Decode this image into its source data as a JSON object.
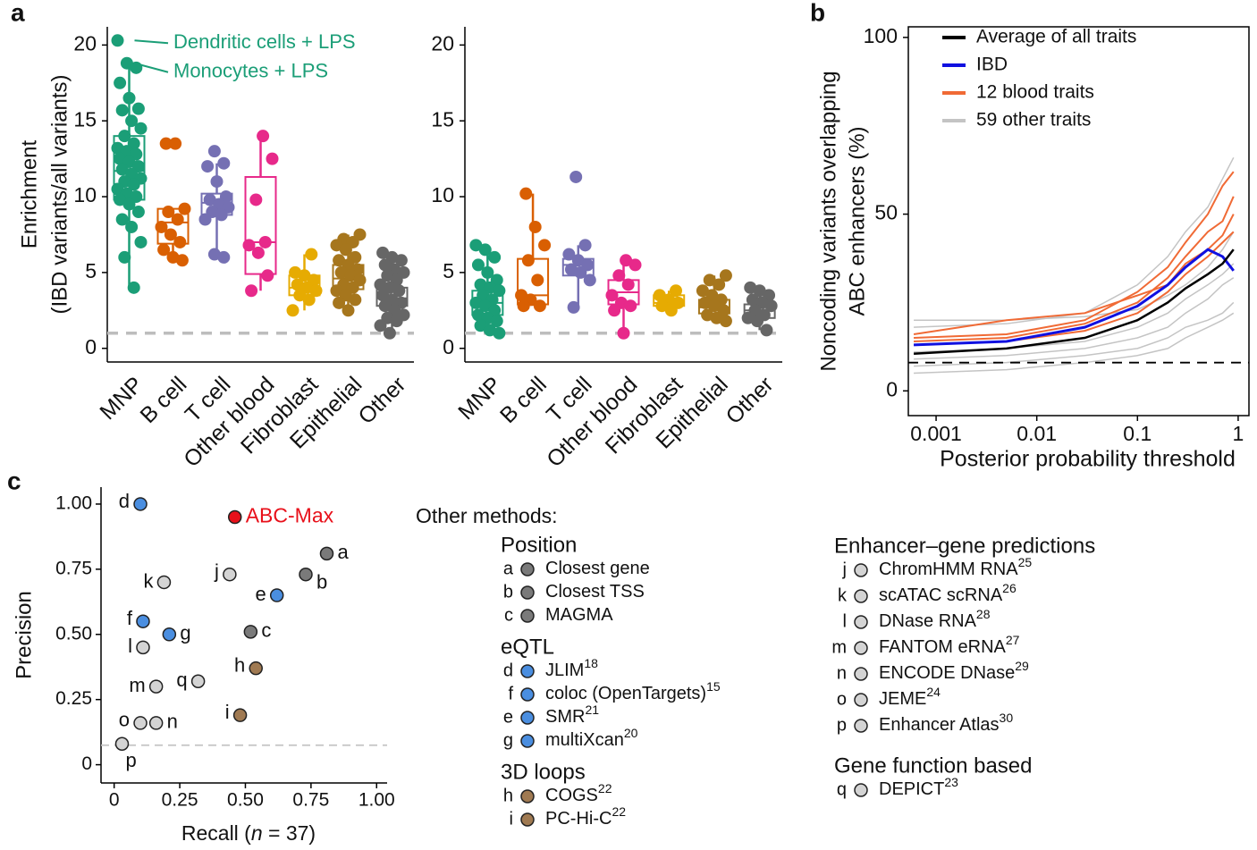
{
  "chart_data": [
    {
      "type": "box",
      "panel": "a",
      "y_label": [
        "Enrichment",
        "(IBD variants/all variants)"
      ],
      "categories": [
        "MNP",
        "B cell",
        "T cell",
        "Other blood",
        "Fibroblast",
        "Epithelial",
        "Other"
      ],
      "colors": [
        "#1b9e77",
        "#d95f02",
        "#7570b3",
        "#e7298a",
        "#e6ab02",
        "#a6761d",
        "#666666"
      ],
      "ylim": [
        -0.9,
        21.2
      ],
      "yticks": [
        0,
        5,
        10,
        15,
        20
      ],
      "hline": 1,
      "annotations": [
        {
          "text": "Dendritic cells + LPS",
          "category": 0,
          "value": 20.3
        },
        {
          "text": "Monocytes + LPS",
          "category": 0,
          "value": 18.8
        }
      ],
      "points": [
        [
          20.3,
          18.8,
          18.5,
          17.5,
          16.5,
          15.8,
          15.7,
          15,
          14.5,
          14,
          13.5,
          13.2,
          13,
          12.8,
          12.5,
          12.3,
          12,
          11.8,
          11.5,
          11.2,
          11,
          10.8,
          10.5,
          10.2,
          10,
          9.8,
          9.5,
          9,
          8.5,
          8,
          7,
          6,
          4
        ],
        [
          13.5,
          13.5,
          9.2,
          9,
          8.5,
          8,
          7.5,
          7,
          6.5,
          6,
          5.8
        ],
        [
          13,
          12.2,
          12,
          11,
          10,
          9.8,
          9.5,
          9.3,
          9,
          8.8,
          8.5,
          6.2,
          6
        ],
        [
          14,
          12.5,
          9.8,
          7,
          6.8,
          6.3,
          4.8,
          3.8
        ],
        [
          6.2,
          5,
          4.8,
          4.5,
          4.2,
          4,
          3.8,
          3.5,
          3.2,
          2.5
        ],
        [
          7.5,
          7.2,
          7,
          6.8,
          6.5,
          6,
          5.8,
          5.5,
          5.2,
          5,
          4.8,
          4.5,
          4.2,
          4,
          3.8,
          3.5,
          3.2,
          3,
          2.5
        ],
        [
          6.3,
          6,
          5.8,
          5.5,
          5.2,
          5,
          4.8,
          4.5,
          4.2,
          4,
          3.8,
          3.5,
          3.2,
          3,
          2.8,
          2.5,
          2.2,
          2,
          1.8,
          1.5,
          1
        ]
      ],
      "boxes": [
        [
          4,
          9.8,
          11.7,
          14,
          18.8
        ],
        [
          5.8,
          6.9,
          8.3,
          9.2,
          9.2
        ],
        [
          6,
          8.8,
          9.6,
          10.2,
          12.2
        ],
        [
          3.8,
          4.9,
          7,
          11.3,
          14
        ],
        [
          2.5,
          3.5,
          4,
          4.8,
          6.2
        ],
        [
          2.5,
          3.9,
          4.6,
          5.5,
          7.5
        ],
        [
          1,
          2.8,
          3.3,
          4,
          6.3
        ]
      ]
    },
    {
      "type": "box",
      "categories": [
        "MNP",
        "B cell",
        "T cell",
        "Other blood",
        "Fibroblast",
        "Epithelial",
        "Other"
      ],
      "colors": [
        "#1b9e77",
        "#d95f02",
        "#7570b3",
        "#e7298a",
        "#e6ab02",
        "#a6761d",
        "#666666"
      ],
      "ylim": [
        -0.9,
        21.2
      ],
      "yticks": [
        0,
        5,
        10,
        15,
        20
      ],
      "hline": 1,
      "points": [
        [
          6.8,
          6.5,
          6,
          5.5,
          5,
          4.5,
          4.2,
          4,
          3.8,
          3.5,
          3.2,
          3,
          2.8,
          2.5,
          2.2,
          2,
          1.8,
          1.5,
          1.2,
          1
        ],
        [
          10.2,
          8,
          6.8,
          5.8,
          4.5,
          3.5,
          3.2,
          2.8,
          2.8
        ],
        [
          11.3,
          6.8,
          6.2,
          5.8,
          5.5,
          5.2,
          5,
          4.5,
          2.7
        ],
        [
          5.8,
          5.5,
          4.8,
          4.2,
          3.5,
          3,
          2.8,
          2.5,
          1
        ],
        [
          3.8,
          3.5,
          3.2,
          3,
          2.8,
          2.5
        ],
        [
          4.8,
          4.5,
          4.2,
          3.8,
          3.5,
          3.2,
          3,
          2.8,
          2.5,
          2.2,
          2,
          1.8
        ],
        [
          4,
          3.8,
          3.5,
          3.2,
          3,
          2.8,
          2.5,
          2.2,
          2,
          1.8,
          1.2
        ]
      ],
      "boxes": [
        [
          1,
          2.2,
          3,
          3.8,
          6.8
        ],
        [
          2.8,
          2.9,
          3.5,
          5.9,
          10.2
        ],
        [
          2.7,
          4.8,
          5.5,
          5.9,
          6.8
        ],
        [
          1,
          2.9,
          3.7,
          4.5,
          5.8
        ],
        [
          2.5,
          2.8,
          3,
          3.5,
          3.8
        ],
        [
          1.8,
          2.3,
          2.7,
          3.2,
          4.8
        ],
        [
          1.2,
          2,
          2.5,
          2.9,
          4
        ]
      ]
    },
    {
      "type": "line",
      "panel": "b",
      "x_label": "Posterior probability threshold",
      "y_label": [
        "Noncoding variants overlapping",
        "ABC enhancers (%)"
      ],
      "log_x": true,
      "xlim": [
        0.00053,
        1.28
      ],
      "xticks": [
        0.001,
        0.01,
        0.1,
        1
      ],
      "ylim": [
        -7,
        103
      ],
      "yticks": [
        0,
        50,
        100
      ],
      "hline": 8,
      "legend": "top-left",
      "x": [
        0.0006,
        0.005,
        0.03,
        0.1,
        0.2,
        0.3,
        0.5,
        0.7,
        0.9
      ],
      "series": [
        {
          "name": "Average of all traits",
          "color": "#000000",
          "lines": [
            [
              10.5,
              12,
              15,
              20,
              25,
              29,
              33,
              36,
              40
            ]
          ]
        },
        {
          "name": "IBD",
          "color": "#1010e0",
          "lines": [
            [
              13,
              14,
              18,
              24,
              30,
              35,
              40,
              38,
              34
            ]
          ]
        },
        {
          "name": "12 blood traits",
          "color": "#f06a35",
          "lines": [
            [
              15,
              16,
              20,
              28,
              35,
              42,
              50,
              58,
              62
            ],
            [
              14,
              15,
              19,
              25,
              32,
              38,
              45,
              48,
              55
            ],
            [
              13,
              14,
              17,
              22,
              28,
              33,
              38,
              42,
              45
            ],
            [
              16,
              20,
              22,
              27,
              30,
              36,
              40,
              44,
              50
            ]
          ]
        },
        {
          "name": "59 other traits",
          "color": "#c4c4c4",
          "lines": [
            [
              9,
              10,
              12,
              15,
              18,
              22,
              26,
              30,
              32
            ],
            [
              18,
              19,
              22,
              30,
              38,
              45,
              52,
              60,
              66
            ],
            [
              7,
              8,
              10,
              12,
              15,
              18,
              20,
              22,
              25
            ],
            [
              11,
              12,
              14,
              18,
              22,
              26,
              30,
              33,
              36
            ],
            [
              20,
              20,
              21,
              23,
              27,
              30,
              35,
              40,
              45
            ],
            [
              5,
              6,
              8,
              10,
              12,
              15,
              18,
              20,
              22
            ]
          ]
        }
      ]
    },
    {
      "type": "scatter",
      "panel": "c",
      "x_label": [
        "Recall (",
        "n",
        " = 37)"
      ],
      "y_label": "Precision",
      "xlim": [
        -0.05,
        1.04
      ],
      "xticks": [
        0,
        0.25,
        {
          "value": 0.5,
          "label": "0.50"
        },
        0.75,
        {
          "value": 1,
          "label": "1.00"
        }
      ],
      "ylim": [
        -0.07,
        1.065
      ],
      "yticks": [
        0,
        0.25,
        {
          "value": 0.5,
          "label": "0.50"
        },
        0.75,
        {
          "value": 1,
          "label": "1.00"
        }
      ],
      "hline": 0.075,
      "points": [
        {
          "label": "ABC-Max",
          "x": 0.46,
          "y": 0.95,
          "color": "#e8101a"
        },
        {
          "label": "a",
          "x": 0.81,
          "y": 0.81,
          "color": "#7a7a7a"
        },
        {
          "label": "b",
          "x": 0.73,
          "y": 0.73,
          "color": "#7a7a7a"
        },
        {
          "label": "c",
          "x": 0.52,
          "y": 0.51,
          "color": "#7a7a7a"
        },
        {
          "label": "d",
          "x": 0.1,
          "y": 1,
          "color": "#4a8ee0"
        },
        {
          "label": "e",
          "x": 0.62,
          "y": 0.65,
          "color": "#4a8ee0"
        },
        {
          "label": "f",
          "x": 0.11,
          "y": 0.55,
          "color": "#4a8ee0"
        },
        {
          "label": "g",
          "x": 0.21,
          "y": 0.5,
          "color": "#4a8ee0"
        },
        {
          "label": "h",
          "x": 0.54,
          "y": 0.37,
          "color": "#a07a52"
        },
        {
          "label": "i",
          "x": 0.48,
          "y": 0.19,
          "color": "#a07a52"
        },
        {
          "label": "j",
          "x": 0.44,
          "y": 0.73,
          "color": "#d4d4d4"
        },
        {
          "label": "k",
          "x": 0.19,
          "y": 0.7,
          "color": "#d4d4d4"
        },
        {
          "label": "l",
          "x": 0.11,
          "y": 0.45,
          "color": "#d4d4d4"
        },
        {
          "label": "m",
          "x": 0.16,
          "y": 0.3,
          "color": "#d4d4d4"
        },
        {
          "label": "n",
          "x": 0.16,
          "y": 0.16,
          "color": "#d4d4d4"
        },
        {
          "label": "o",
          "x": 0.1,
          "y": 0.16,
          "color": "#d4d4d4"
        },
        {
          "label": "p",
          "x": 0.03,
          "y": 0.08,
          "color": "#d4d4d4"
        },
        {
          "label": "q",
          "x": 0.32,
          "y": 0.32,
          "color": "#d4d4d4"
        }
      ],
      "legend_title": "Other methods:",
      "legend_groups": [
        {
          "title": "Position",
          "items": [
            {
              "letter": "a",
              "name": "Closest gene"
            },
            {
              "letter": "b",
              "name": "Closest TSS"
            },
            {
              "letter": "c",
              "name": "MAGMA"
            }
          ]
        },
        {
          "title": "eQTL",
          "items": [
            {
              "letter": "d",
              "name": "JLIM",
              "ref": "18"
            },
            {
              "letter": "f",
              "name": "coloc (OpenTargets)",
              "ref": "15"
            },
            {
              "letter": "e",
              "name": "SMR",
              "ref": "21"
            },
            {
              "letter": "g",
              "name": "multiXcan",
              "ref": "20"
            }
          ]
        },
        {
          "title": "3D loops",
          "items": [
            {
              "letter": "h",
              "name": "COGS",
              "ref": "22"
            },
            {
              "letter": "i",
              "name": "PC-Hi-C",
              "ref": "22"
            }
          ]
        },
        {
          "title": "Enhancer–gene predictions",
          "items": [
            {
              "letter": "j",
              "name": "ChromHMM RNA",
              "ref": "25"
            },
            {
              "letter": "k",
              "name": "scATAC scRNA",
              "ref": "26"
            },
            {
              "letter": "l",
              "name": "DNase RNA",
              "ref": "28"
            },
            {
              "letter": "m",
              "name": "FANTOM eRNA",
              "ref": "27"
            },
            {
              "letter": "n",
              "name": "ENCODE DNase",
              "ref": "29"
            },
            {
              "letter": "o",
              "name": "JEME",
              "ref": "24"
            },
            {
              "letter": "p",
              "name": "Enhancer Atlas",
              "ref": "30"
            }
          ]
        },
        {
          "title": "Gene function based",
          "items": [
            {
              "letter": "q",
              "name": "DEPICT",
              "ref": "23"
            }
          ]
        }
      ]
    }
  ]
}
